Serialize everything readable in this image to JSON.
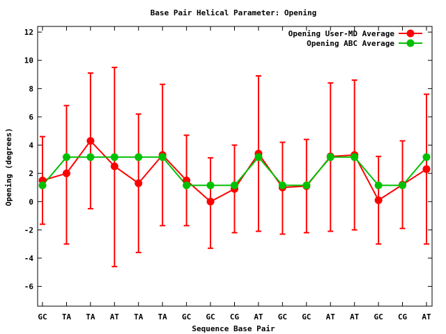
{
  "chart_data": {
    "type": "line",
    "title": "Base Pair Helical Parameter: Opening",
    "xlabel": "Sequence Base Pair",
    "ylabel": "Opening (degrees)",
    "ylim": [
      -7.4,
      12.4
    ],
    "yticks": [
      -6,
      -4,
      -2,
      0,
      2,
      4,
      6,
      8,
      10,
      12
    ],
    "categories": [
      "GC",
      "TA",
      "TA",
      "AT",
      "TA",
      "TA",
      "GC",
      "GC",
      "CG",
      "AT",
      "GC",
      "GC",
      "AT",
      "AT",
      "GC",
      "CG",
      "AT"
    ],
    "legend_position": "top-right",
    "grid": false,
    "series": [
      {
        "name": "Opening User-MD Average",
        "color": "#ff0000",
        "values": [
          1.5,
          2.0,
          4.3,
          2.5,
          1.3,
          3.3,
          1.5,
          0.0,
          0.9,
          3.4,
          1.0,
          1.1,
          3.2,
          3.3,
          0.1,
          1.2,
          2.3
        ],
        "error_low": [
          -1.6,
          -3.0,
          -0.5,
          -4.6,
          -3.6,
          -1.7,
          -1.7,
          -3.3,
          -2.2,
          -2.1,
          -2.3,
          -2.2,
          -2.1,
          -2.0,
          -3.0,
          -1.9,
          -3.0
        ],
        "error_high": [
          4.6,
          6.8,
          9.1,
          9.5,
          6.2,
          8.3,
          4.7,
          3.1,
          4.0,
          8.9,
          4.2,
          4.4,
          8.4,
          8.6,
          3.2,
          4.3,
          7.6
        ]
      },
      {
        "name": "Opening ABC Average",
        "color": "#00c000",
        "values": [
          1.15,
          3.15,
          3.15,
          3.15,
          3.15,
          3.15,
          1.15,
          1.15,
          1.15,
          3.15,
          1.15,
          1.15,
          3.15,
          3.15,
          1.15,
          1.15,
          3.15
        ]
      }
    ]
  }
}
